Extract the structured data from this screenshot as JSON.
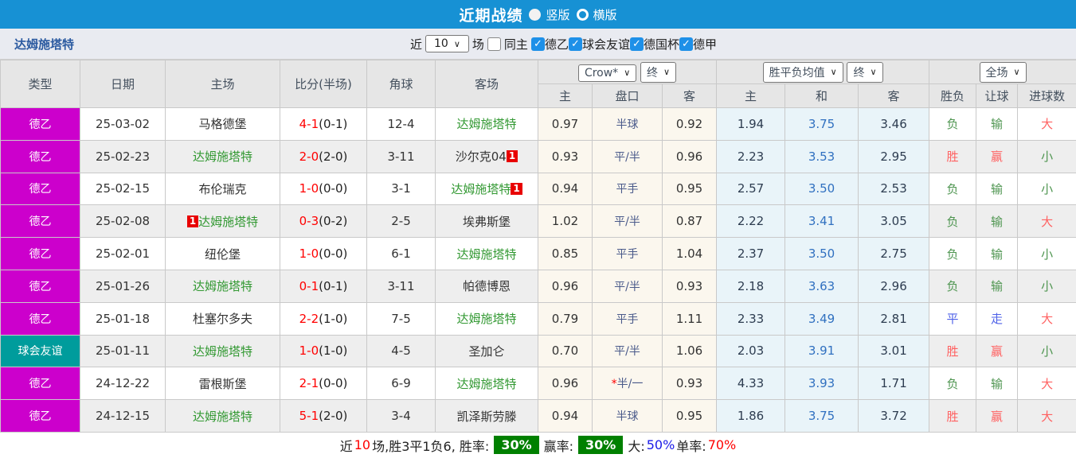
{
  "topbar": {
    "title": "近期战绩",
    "radios": [
      {
        "label": "竖版",
        "selected": true
      },
      {
        "label": "横版",
        "selected": false
      }
    ]
  },
  "filterbar": {
    "team": "达姆施塔特",
    "near_label": "近",
    "count_value": "10",
    "games_label": "场",
    "same_home_label": "同主",
    "leagues": [
      "德乙",
      "球会友谊",
      "德国杯",
      "德甲"
    ]
  },
  "table": {
    "selects": {
      "bookmaker": "Crow*",
      "bookmaker_time": "终",
      "avg": "胜平负均值",
      "avg_time": "终",
      "period": "全场"
    },
    "headers": {
      "type": "类型",
      "date": "日期",
      "home": "主场",
      "score": "比分(半场)",
      "corner": "角球",
      "away": "客场",
      "odds_home": "主",
      "odds_handicap": "盘口",
      "odds_away": "客",
      "avg_home": "主",
      "avg_draw": "和",
      "avg_away": "客",
      "result_wl": "胜负",
      "result_handicap": "让球",
      "result_goals": "进球数"
    },
    "rows": [
      {
        "type": "德乙",
        "type_class": "league",
        "date": "25-03-02",
        "home": {
          "name": "马格德堡",
          "green": false,
          "badge": ""
        },
        "score": {
          "full": "4-1",
          "half": "(0-1)"
        },
        "corner": "12-4",
        "away": {
          "name": "达姆施塔特",
          "green": true,
          "badge": ""
        },
        "crow": {
          "home": "0.97",
          "handicap": "半球",
          "star": false,
          "away": "0.92"
        },
        "avg": {
          "home": "1.94",
          "draw": "3.75",
          "away": "3.46"
        },
        "result": {
          "wl": "负",
          "wl_color": "green",
          "handicap": "输",
          "handicap_color": "green",
          "goals": "大",
          "goals_color": "red"
        }
      },
      {
        "type": "德乙",
        "type_class": "league",
        "date": "25-02-23",
        "home": {
          "name": "达姆施塔特",
          "green": true,
          "badge": ""
        },
        "score": {
          "full": "2-0",
          "half": "(2-0)"
        },
        "corner": "3-11",
        "away": {
          "name": "沙尔克04",
          "green": false,
          "badge": "after"
        },
        "crow": {
          "home": "0.93",
          "handicap": "平/半",
          "star": false,
          "away": "0.96"
        },
        "avg": {
          "home": "2.23",
          "draw": "3.53",
          "away": "2.95"
        },
        "result": {
          "wl": "胜",
          "wl_color": "red",
          "handicap": "赢",
          "handicap_color": "red",
          "goals": "小",
          "goals_color": "green"
        }
      },
      {
        "type": "德乙",
        "type_class": "league",
        "date": "25-02-15",
        "home": {
          "name": "布伦瑞克",
          "green": false,
          "badge": ""
        },
        "score": {
          "full": "1-0",
          "half": "(0-0)"
        },
        "corner": "3-1",
        "away": {
          "name": "达姆施塔特",
          "green": true,
          "badge": "after"
        },
        "crow": {
          "home": "0.94",
          "handicap": "平手",
          "star": false,
          "away": "0.95"
        },
        "avg": {
          "home": "2.57",
          "draw": "3.50",
          "away": "2.53"
        },
        "result": {
          "wl": "负",
          "wl_color": "green",
          "handicap": "输",
          "handicap_color": "green",
          "goals": "小",
          "goals_color": "green"
        }
      },
      {
        "type": "德乙",
        "type_class": "league",
        "date": "25-02-08",
        "home": {
          "name": "达姆施塔特",
          "green": true,
          "badge": "before"
        },
        "score": {
          "full": "0-3",
          "half": "(0-2)"
        },
        "corner": "2-5",
        "away": {
          "name": "埃弗斯堡",
          "green": false,
          "badge": ""
        },
        "crow": {
          "home": "1.02",
          "handicap": "平/半",
          "star": false,
          "away": "0.87"
        },
        "avg": {
          "home": "2.22",
          "draw": "3.41",
          "away": "3.05"
        },
        "result": {
          "wl": "负",
          "wl_color": "green",
          "handicap": "输",
          "handicap_color": "green",
          "goals": "大",
          "goals_color": "red"
        }
      },
      {
        "type": "德乙",
        "type_class": "league",
        "date": "25-02-01",
        "home": {
          "name": "纽伦堡",
          "green": false,
          "badge": ""
        },
        "score": {
          "full": "1-0",
          "half": "(0-0)"
        },
        "corner": "6-1",
        "away": {
          "name": "达姆施塔特",
          "green": true,
          "badge": ""
        },
        "crow": {
          "home": "0.85",
          "handicap": "平手",
          "star": false,
          "away": "1.04"
        },
        "avg": {
          "home": "2.37",
          "draw": "3.50",
          "away": "2.75"
        },
        "result": {
          "wl": "负",
          "wl_color": "green",
          "handicap": "输",
          "handicap_color": "green",
          "goals": "小",
          "goals_color": "green"
        }
      },
      {
        "type": "德乙",
        "type_class": "league",
        "date": "25-01-26",
        "home": {
          "name": "达姆施塔特",
          "green": true,
          "badge": ""
        },
        "score": {
          "full": "0-1",
          "half": "(0-1)"
        },
        "corner": "3-11",
        "away": {
          "name": "帕德博恩",
          "green": false,
          "badge": ""
        },
        "crow": {
          "home": "0.96",
          "handicap": "平/半",
          "star": false,
          "away": "0.93"
        },
        "avg": {
          "home": "2.18",
          "draw": "3.63",
          "away": "2.96"
        },
        "result": {
          "wl": "负",
          "wl_color": "green",
          "handicap": "输",
          "handicap_color": "green",
          "goals": "小",
          "goals_color": "green"
        }
      },
      {
        "type": "德乙",
        "type_class": "league",
        "date": "25-01-18",
        "home": {
          "name": "杜塞尔多夫",
          "green": false,
          "badge": ""
        },
        "score": {
          "full": "2-2",
          "half": "(1-0)"
        },
        "corner": "7-5",
        "away": {
          "name": "达姆施塔特",
          "green": true,
          "badge": ""
        },
        "crow": {
          "home": "0.79",
          "handicap": "平手",
          "star": false,
          "away": "1.11"
        },
        "avg": {
          "home": "2.33",
          "draw": "3.49",
          "away": "2.81"
        },
        "result": {
          "wl": "平",
          "wl_color": "blue",
          "handicap": "走",
          "handicap_color": "blue",
          "goals": "大",
          "goals_color": "red"
        }
      },
      {
        "type": "球会友谊",
        "type_class": "friendly",
        "date": "25-01-11",
        "home": {
          "name": "达姆施塔特",
          "green": true,
          "badge": ""
        },
        "score": {
          "full": "1-0",
          "half": "(1-0)"
        },
        "corner": "4-5",
        "away": {
          "name": "圣加仑",
          "green": false,
          "badge": ""
        },
        "crow": {
          "home": "0.70",
          "handicap": "平/半",
          "star": false,
          "away": "1.06"
        },
        "avg": {
          "home": "2.03",
          "draw": "3.91",
          "away": "3.01"
        },
        "result": {
          "wl": "胜",
          "wl_color": "red",
          "handicap": "赢",
          "handicap_color": "red",
          "goals": "小",
          "goals_color": "green"
        }
      },
      {
        "type": "德乙",
        "type_class": "league",
        "date": "24-12-22",
        "home": {
          "name": "雷根斯堡",
          "green": false,
          "badge": ""
        },
        "score": {
          "full": "2-1",
          "half": "(0-0)"
        },
        "corner": "6-9",
        "away": {
          "name": "达姆施塔特",
          "green": true,
          "badge": ""
        },
        "crow": {
          "home": "0.96",
          "handicap": "半/一",
          "star": true,
          "away": "0.93"
        },
        "avg": {
          "home": "4.33",
          "draw": "3.93",
          "away": "1.71"
        },
        "result": {
          "wl": "负",
          "wl_color": "green",
          "handicap": "输",
          "handicap_color": "green",
          "goals": "大",
          "goals_color": "red"
        }
      },
      {
        "type": "德乙",
        "type_class": "league",
        "date": "24-12-15",
        "home": {
          "name": "达姆施塔特",
          "green": true,
          "badge": ""
        },
        "score": {
          "full": "5-1",
          "half": "(2-0)"
        },
        "corner": "3-4",
        "away": {
          "name": "凯泽斯劳滕",
          "green": false,
          "badge": ""
        },
        "crow": {
          "home": "0.94",
          "handicap": "半球",
          "star": false,
          "away": "0.95"
        },
        "avg": {
          "home": "1.86",
          "draw": "3.75",
          "away": "3.72"
        },
        "result": {
          "wl": "胜",
          "wl_color": "red",
          "handicap": "赢",
          "handicap_color": "red",
          "goals": "大",
          "goals_color": "red"
        }
      }
    ]
  },
  "footer": {
    "segments": [
      {
        "text": "近",
        "color": "black"
      },
      {
        "text": "10",
        "color": "red"
      },
      {
        "text": "场,胜3平1负6, 胜率:",
        "color": "black"
      },
      {
        "text": "30%",
        "badge": true
      },
      {
        "text": "赢率:",
        "color": "black"
      },
      {
        "text": "30%",
        "badge": true
      },
      {
        "text": "大:",
        "color": "black"
      },
      {
        "text": "50%",
        "color": "blue"
      },
      {
        "text": " 单率:",
        "color": "black"
      },
      {
        "text": "70%",
        "color": "red"
      }
    ]
  },
  "colors": {
    "topbar_blue": "#1791d4",
    "league_magenta": "#cc00cc",
    "friendly_teal": "#009c9c",
    "team_green": "#339933",
    "score_red": "#ff0000",
    "win_red": "#ff6161",
    "lose_green": "#4e9550",
    "draw_blue": "#4f62e8",
    "avg_blue": "#3070c0",
    "badge_green": "#008000"
  }
}
